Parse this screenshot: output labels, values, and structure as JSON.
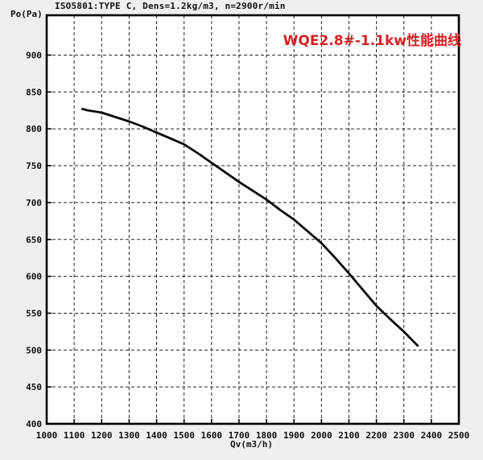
{
  "header": {
    "title": "ISO5801:TYPE C, Dens=1.2kg/m3, n=2900r/min"
  },
  "annotation": {
    "text": "WQE2.8#-1.1kw性能曲线",
    "color": "#d42222"
  },
  "colors": {
    "background": "#f0efed",
    "plot_background": "#ffffff",
    "frame": "#000000",
    "grid": "#222222",
    "curve": "#0a0a0a",
    "annotation_red": "#d42222"
  },
  "chart_data": {
    "type": "line",
    "title": "ISO5801:TYPE C, Dens=1.2kg/m3, n=2900r/min",
    "xlabel": "Qv(m3/h)",
    "ylabel": "Po(Pa)",
    "xlim": [
      1000,
      2500
    ],
    "ylim": [
      400,
      954
    ],
    "x_ticks": [
      1000,
      1100,
      1200,
      1300,
      1400,
      1500,
      1600,
      1700,
      1800,
      1900,
      2000,
      2100,
      2200,
      2300,
      2400,
      2500
    ],
    "y_ticks": [
      400,
      450,
      500,
      550,
      600,
      650,
      700,
      750,
      800,
      850,
      900
    ],
    "grid": "dashed, vertical every 100 m3/h, horizontal every 50 Pa",
    "legend_position": "none",
    "annotation": "WQE2.8#-1.1kw性能曲线",
    "series": [
      {
        "name": "WQE2.8#-1.1kw",
        "points": [
          [
            1130,
            827
          ],
          [
            1150,
            825
          ],
          [
            1200,
            822
          ],
          [
            1250,
            816
          ],
          [
            1300,
            810
          ],
          [
            1350,
            803
          ],
          [
            1400,
            795
          ],
          [
            1450,
            787
          ],
          [
            1500,
            779
          ],
          [
            1550,
            767
          ],
          [
            1600,
            754
          ],
          [
            1650,
            741
          ],
          [
            1700,
            728
          ],
          [
            1750,
            716
          ],
          [
            1800,
            704
          ],
          [
            1850,
            690
          ],
          [
            1900,
            677
          ],
          [
            1950,
            661
          ],
          [
            2000,
            645
          ],
          [
            2050,
            625
          ],
          [
            2100,
            604
          ],
          [
            2150,
            582
          ],
          [
            2200,
            560
          ],
          [
            2250,
            542
          ],
          [
            2300,
            525
          ],
          [
            2350,
            506
          ]
        ]
      }
    ]
  },
  "layout_note": "single performance curve plot, no interactive controls visible"
}
